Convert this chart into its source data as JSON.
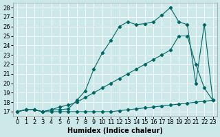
{
  "xlabel": "Humidex (Indice chaleur)",
  "bg_color": "#cce8e8",
  "grid_color": "#ffffff",
  "line_color": "#006666",
  "xlim": [
    -0.5,
    23.5
  ],
  "ylim": [
    16.5,
    28.5
  ],
  "yticks": [
    17,
    18,
    19,
    20,
    21,
    22,
    23,
    24,
    25,
    26,
    27,
    28
  ],
  "xticks": [
    0,
    1,
    2,
    3,
    4,
    5,
    6,
    7,
    8,
    9,
    10,
    11,
    12,
    13,
    14,
    15,
    16,
    17,
    18,
    19,
    20,
    21,
    22,
    23
  ],
  "line_bottom_x": [
    0,
    1,
    2,
    3,
    4,
    5,
    6,
    7,
    8,
    9,
    10,
    11,
    12,
    13,
    14,
    15,
    16,
    17,
    18,
    19,
    20,
    21,
    22,
    23
  ],
  "line_bottom_y": [
    17.0,
    17.2,
    17.2,
    17.0,
    17.0,
    17.0,
    17.0,
    17.0,
    17.0,
    17.0,
    17.0,
    17.0,
    17.1,
    17.2,
    17.3,
    17.4,
    17.5,
    17.6,
    17.7,
    17.8,
    17.9,
    18.0,
    18.1,
    18.2
  ],
  "line_top_x": [
    0,
    1,
    2,
    3,
    4,
    5,
    6,
    7,
    8,
    9,
    10,
    11,
    12,
    13,
    14,
    15,
    16,
    17,
    18,
    19,
    20,
    21,
    22,
    23
  ],
  "line_top_y": [
    17.0,
    17.2,
    17.2,
    17.0,
    17.2,
    17.2,
    17.3,
    18.2,
    19.2,
    21.5,
    23.2,
    24.5,
    26.0,
    26.5,
    26.2,
    26.3,
    26.5,
    27.2,
    28.0,
    26.5,
    26.2,
    20.0,
    26.2,
    18.2
  ],
  "line_diag_x": [
    0,
    1,
    2,
    3,
    4,
    5,
    6,
    7,
    8,
    9,
    10,
    11,
    12,
    13,
    14,
    15,
    16,
    17,
    18,
    19,
    20,
    21,
    22,
    23
  ],
  "line_diag_y": [
    17.0,
    17.2,
    17.2,
    17.0,
    17.2,
    17.5,
    17.7,
    18.0,
    18.5,
    19.0,
    19.5,
    20.0,
    20.5,
    21.0,
    21.5,
    22.0,
    22.5,
    23.0,
    23.5,
    25.0,
    25.0,
    22.0,
    19.5,
    18.2
  ],
  "xlabel_fontsize": 7,
  "tick_fontsize": 6
}
